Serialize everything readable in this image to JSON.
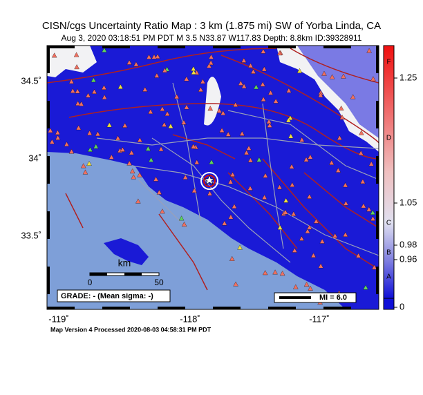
{
  "header": {
    "title": "CISN/cgs Uncertainty Ratio Map : 3 km (1.875 mi) SW of Yorba Linda, CA",
    "subtitle": "Aug  3, 2020 03:18:51 PM PDT   M 3.5   N33.87 W117.83   Depth: 8.8km   ID:39328911"
  },
  "map": {
    "lat_labels": [
      "34.5˚",
      "34˚",
      "33.5˚"
    ],
    "lon_labels": [
      "-119˚",
      "-118˚",
      "-117˚"
    ],
    "scale_bar": {
      "unit": "km",
      "labels": [
        "0",
        "50"
      ]
    },
    "grade": "GRADE: - (Mean sigma: -)",
    "mi_legend": "MI = 6.0"
  },
  "colorbar": {
    "labels": [
      "1.25",
      "1.05",
      "0.98",
      "0.96",
      "0"
    ],
    "letters": [
      "F",
      "D",
      "C",
      "B",
      "A"
    ]
  },
  "footer": "Map Version 4 Processed 2020-08-03 04:58:31 PM PDT"
}
